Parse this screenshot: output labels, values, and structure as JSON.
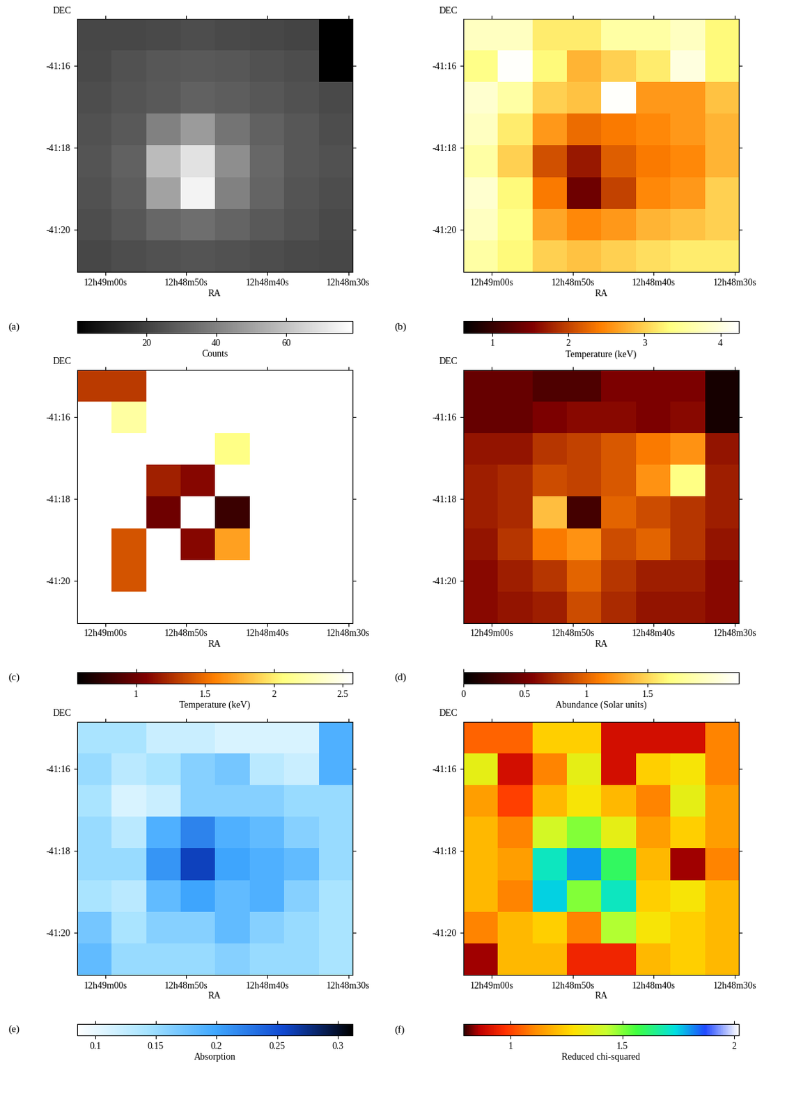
{
  "chart_data": [
    {
      "type": "heatmap",
      "panel_label": "(a)",
      "x_label": "RA",
      "y_label": "DEC",
      "xlim": [
        63.5,
        29.5
      ],
      "xticks": [
        {
          "value": 60,
          "label": "12h49m00s"
        },
        {
          "value": 50,
          "label": "12h48m50s"
        },
        {
          "value": 40,
          "label": "12h48m40s"
        },
        {
          "value": 30,
          "label": "12h48m30s"
        }
      ],
      "ylim": [
        -21.03,
        -14.85
      ],
      "yticks": [
        {
          "value": -16,
          "label": "-41:16"
        },
        {
          "value": -18,
          "label": "-41:18"
        },
        {
          "value": -20,
          "label": "-41:20"
        }
      ],
      "cells": [
        [
          22,
          22,
          23,
          24,
          23,
          22,
          21,
          0
        ],
        [
          23,
          25,
          27,
          28,
          27,
          25,
          24,
          0
        ],
        [
          24,
          26,
          28,
          30,
          29,
          27,
          25,
          23
        ],
        [
          25,
          28,
          40,
          48,
          36,
          30,
          27,
          24
        ],
        [
          26,
          30,
          58,
          70,
          44,
          32,
          27,
          25
        ],
        [
          25,
          29,
          50,
          75,
          40,
          31,
          26,
          24
        ],
        [
          24,
          27,
          32,
          34,
          31,
          28,
          25,
          23
        ],
        [
          22,
          24,
          25,
          26,
          25,
          24,
          23,
          22
        ]
      ],
      "colorbar": {
        "label": "Counts",
        "range": [
          0,
          79
        ],
        "ticks": [
          20,
          40,
          60
        ]
      }
    },
    {
      "type": "heatmap",
      "panel_label": "(b)",
      "x_label": "RA",
      "y_label": "DEC",
      "xlim": [
        63.5,
        29.5
      ],
      "xticks": [
        {
          "value": 60,
          "label": "12h49m00s"
        },
        {
          "value": 50,
          "label": "12h48m50s"
        },
        {
          "value": 40,
          "label": "12h48m40s"
        },
        {
          "value": 30,
          "label": "12h48m30s"
        }
      ],
      "ylim": [
        -21.03,
        -14.85
      ],
      "yticks": [
        {
          "value": -16,
          "label": "-41:16"
        },
        {
          "value": -18,
          "label": "-41:18"
        },
        {
          "value": -20,
          "label": "-41:20"
        }
      ],
      "cells": [
        [
          3.8,
          3.8,
          3.2,
          3.2,
          3.6,
          3.6,
          3.8,
          3.3
        ],
        [
          3.4,
          4.2,
          3.3,
          2.8,
          3.0,
          3.2,
          4.0,
          3.3
        ],
        [
          3.9,
          3.6,
          3.0,
          2.9,
          4.2,
          2.6,
          2.6,
          2.9
        ],
        [
          3.8,
          3.2,
          2.6,
          2.3,
          2.4,
          2.5,
          2.6,
          2.8
        ],
        [
          3.6,
          3.0,
          2.1,
          1.7,
          2.2,
          2.4,
          2.5,
          2.8
        ],
        [
          3.9,
          3.3,
          2.4,
          1.4,
          2.0,
          2.5,
          2.6,
          3.0
        ],
        [
          3.8,
          3.4,
          2.7,
          2.5,
          2.6,
          2.8,
          2.9,
          3.0
        ],
        [
          3.6,
          3.3,
          3.0,
          2.9,
          3.0,
          3.1,
          3.2,
          3.2
        ]
      ],
      "colorbar": {
        "label": "Temperature (keV)",
        "range": [
          0.62,
          4.24
        ],
        "ticks": [
          1,
          2,
          3,
          4
        ]
      }
    },
    {
      "type": "heatmap",
      "panel_label": "(c)",
      "x_label": "RA",
      "y_label": "DEC",
      "xlim": [
        63.5,
        29.5
      ],
      "xticks": [
        {
          "value": 60,
          "label": "12h49m00s"
        },
        {
          "value": 50,
          "label": "12h48m50s"
        },
        {
          "value": 40,
          "label": "12h48m40s"
        },
        {
          "value": 30,
          "label": "12h48m30s"
        }
      ],
      "ylim": [
        -21.03,
        -14.85
      ],
      "yticks": [
        {
          "value": -16,
          "label": "-41:16"
        },
        {
          "value": -18,
          "label": "-41:18"
        },
        {
          "value": -20,
          "label": "-41:20"
        }
      ],
      "cells": [
        [
          1.3,
          1.3,
          null,
          null,
          null,
          null,
          null,
          null
        ],
        [
          null,
          2.2,
          null,
          null,
          null,
          null,
          null,
          null
        ],
        [
          null,
          null,
          null,
          null,
          2.1,
          null,
          null,
          null
        ],
        [
          null,
          null,
          1.2,
          1.1,
          null,
          null,
          null,
          null
        ],
        [
          null,
          null,
          1.0,
          null,
          0.8,
          null,
          null,
          null
        ],
        [
          null,
          1.4,
          null,
          1.1,
          1.7,
          null,
          null,
          null
        ],
        [
          null,
          1.4,
          null,
          null,
          null,
          null,
          null,
          null
        ],
        [
          null,
          null,
          null,
          null,
          null,
          null,
          null,
          null
        ]
      ],
      "colorbar": {
        "label": "Temperature (keV)",
        "range": [
          0.57,
          2.57
        ],
        "ticks": [
          1,
          1.5,
          2,
          2.5
        ]
      }
    },
    {
      "type": "heatmap",
      "panel_label": "(d)",
      "x_label": "RA",
      "y_label": "DEC",
      "xlim": [
        63.5,
        29.5
      ],
      "xticks": [
        {
          "value": 60,
          "label": "12h49m00s"
        },
        {
          "value": 50,
          "label": "12h48m50s"
        },
        {
          "value": 40,
          "label": "12h48m40s"
        },
        {
          "value": 30,
          "label": "12h48m30s"
        }
      ],
      "ylim": [
        -21.03,
        -14.85
      ],
      "yticks": [
        {
          "value": -16,
          "label": "-41:16"
        },
        {
          "value": -18,
          "label": "-41:18"
        },
        {
          "value": -20,
          "label": "-41:20"
        }
      ],
      "cells": [
        [
          0.45,
          0.45,
          0.35,
          0.35,
          0.55,
          0.55,
          0.55,
          0.1
        ],
        [
          0.45,
          0.45,
          0.55,
          0.6,
          0.6,
          0.55,
          0.6,
          0.1
        ],
        [
          0.65,
          0.65,
          0.8,
          0.85,
          0.95,
          1.1,
          1.2,
          0.65
        ],
        [
          0.7,
          0.75,
          0.9,
          0.85,
          0.95,
          1.2,
          1.7,
          0.7
        ],
        [
          0.7,
          0.75,
          1.4,
          0.3,
          1.0,
          0.9,
          0.8,
          0.7
        ],
        [
          0.65,
          0.8,
          1.1,
          1.2,
          0.9,
          1.0,
          0.8,
          0.65
        ],
        [
          0.6,
          0.7,
          0.8,
          1.0,
          0.8,
          0.7,
          0.7,
          0.6
        ],
        [
          0.6,
          0.65,
          0.7,
          0.9,
          0.75,
          0.65,
          0.65,
          0.6
        ]
      ],
      "colorbar": {
        "label": "Abundance (Solar units)",
        "range": [
          0,
          2.24
        ],
        "ticks": [
          0,
          0.5,
          1,
          1.5
        ]
      }
    },
    {
      "type": "heatmap",
      "panel_label": "(e)",
      "x_label": "RA",
      "y_label": "DEC",
      "xlim": [
        63.5,
        29.5
      ],
      "xticks": [
        {
          "value": 60,
          "label": "12h49m00s"
        },
        {
          "value": 50,
          "label": "12h48m50s"
        },
        {
          "value": 40,
          "label": "12h48m40s"
        },
        {
          "value": 30,
          "label": "12h48m30s"
        }
      ],
      "ylim": [
        -21.03,
        -14.85
      ],
      "yticks": [
        {
          "value": -16,
          "label": "-41:16"
        },
        {
          "value": -18,
          "label": "-41:18"
        },
        {
          "value": -20,
          "label": "-41:20"
        }
      ],
      "cells": [
        [
          0.14,
          0.14,
          0.12,
          0.12,
          0.11,
          0.11,
          0.11,
          0.19
        ],
        [
          0.15,
          0.13,
          0.14,
          0.16,
          0.17,
          0.13,
          0.12,
          0.19
        ],
        [
          0.14,
          0.11,
          0.12,
          0.16,
          0.16,
          0.16,
          0.15,
          0.15
        ],
        [
          0.15,
          0.13,
          0.19,
          0.22,
          0.19,
          0.18,
          0.16,
          0.15
        ],
        [
          0.15,
          0.15,
          0.21,
          0.26,
          0.2,
          0.19,
          0.18,
          0.15
        ],
        [
          0.14,
          0.13,
          0.18,
          0.2,
          0.18,
          0.19,
          0.16,
          0.14
        ],
        [
          0.17,
          0.14,
          0.16,
          0.16,
          0.18,
          0.16,
          0.15,
          0.14
        ],
        [
          0.18,
          0.15,
          0.15,
          0.15,
          0.16,
          0.15,
          0.15,
          0.14
        ]
      ],
      "colorbar": {
        "label": "Absorption",
        "range": [
          0.085,
          0.312
        ],
        "ticks": [
          0.1,
          0.15,
          0.2,
          0.25,
          0.3
        ]
      }
    },
    {
      "type": "heatmap",
      "panel_label": "(f)",
      "x_label": "RA",
      "y_label": "DEC",
      "xlim": [
        63.5,
        29.5
      ],
      "xticks": [
        {
          "value": 60,
          "label": "12h49m00s"
        },
        {
          "value": 50,
          "label": "12h48m50s"
        },
        {
          "value": 40,
          "label": "12h48m40s"
        },
        {
          "value": 30,
          "label": "12h48m30s"
        }
      ],
      "ylim": [
        -21.03,
        -14.85
      ],
      "yticks": [
        {
          "value": -16,
          "label": "-41:16"
        },
        {
          "value": -18,
          "label": "-41:18"
        },
        {
          "value": -20,
          "label": "-41:20"
        }
      ],
      "cells": [
        [
          1.05,
          1.05,
          1.25,
          1.25,
          0.9,
          0.9,
          0.9,
          1.1
        ],
        [
          1.35,
          0.9,
          1.1,
          1.35,
          0.9,
          1.25,
          1.3,
          1.1
        ],
        [
          1.15,
          1.0,
          1.2,
          1.3,
          1.2,
          1.1,
          1.35,
          1.15
        ],
        [
          1.2,
          1.1,
          1.4,
          1.5,
          1.35,
          1.15,
          1.25,
          1.15
        ],
        [
          1.2,
          1.15,
          1.7,
          1.8,
          1.6,
          1.2,
          0.85,
          1.1
        ],
        [
          1.2,
          1.1,
          1.75,
          1.5,
          1.7,
          1.25,
          1.3,
          1.2
        ],
        [
          1.1,
          1.2,
          1.25,
          1.1,
          1.45,
          1.3,
          1.25,
          1.2
        ],
        [
          0.85,
          1.2,
          1.2,
          0.95,
          0.95,
          1.2,
          1.25,
          1.2
        ]
      ],
      "colorbar": {
        "label": "Reduced chi-squared",
        "range": [
          0.79,
          2.02
        ],
        "ticks": [
          1,
          1.5,
          2
        ]
      }
    }
  ]
}
